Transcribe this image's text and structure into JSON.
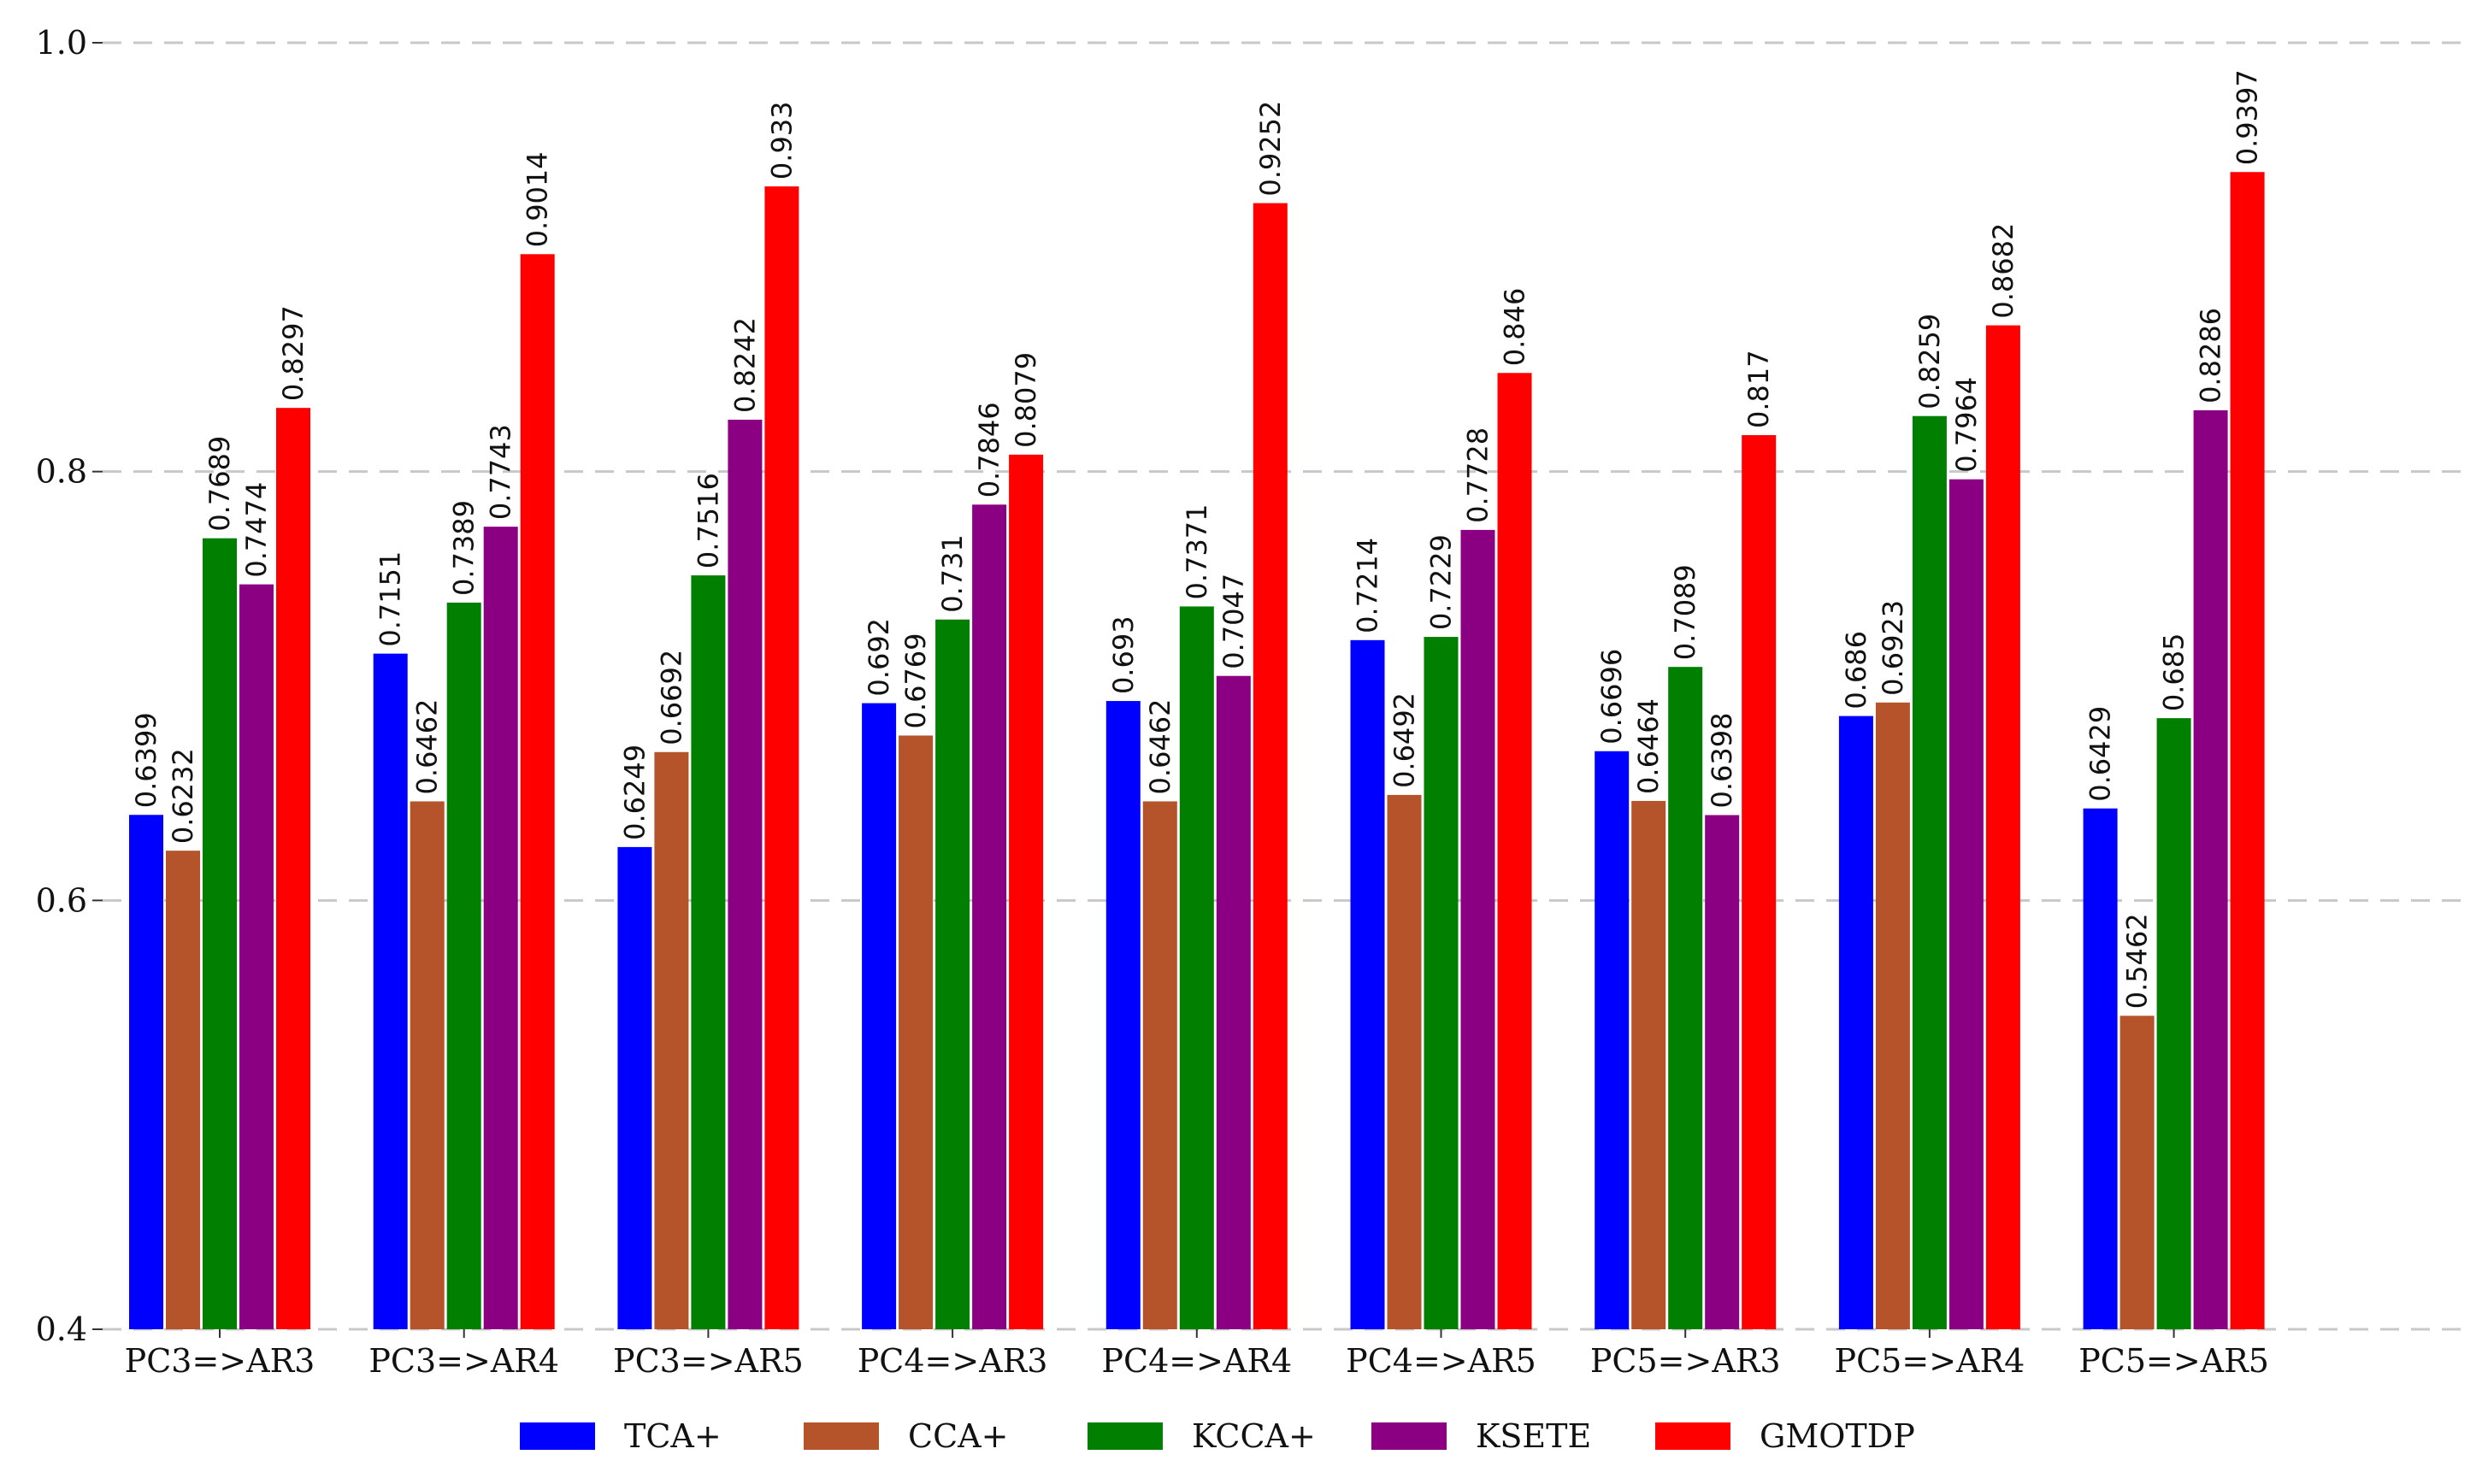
{
  "chart_data": {
    "type": "bar",
    "title": "",
    "xlabel": "",
    "ylabel": "",
    "ylim": [
      0.4,
      1.0
    ],
    "yticks": [
      0.4,
      0.6,
      0.8,
      1.0
    ],
    "ytick_labels": [
      "0.4",
      "0.6",
      "0.8",
      "1.0"
    ],
    "grid": true,
    "legend_position": "bottom",
    "categories": [
      "PC3=>AR3",
      "PC3=>AR4",
      "PC3=>AR5",
      "PC4=>AR3",
      "PC4=>AR4",
      "PC4=>AR5",
      "PC5=>AR3",
      "PC5=>AR4",
      "PC5=>AR5"
    ],
    "series": [
      {
        "name": "TCA+",
        "color": "#0000ff",
        "values": [
          0.6399,
          0.7151,
          0.6249,
          0.692,
          0.693,
          0.7214,
          0.6696,
          0.686,
          0.6429
        ],
        "labels": [
          "0.6399",
          "0.7151",
          "0.6249",
          "0.692",
          "0.693",
          "0.7214",
          "0.6696",
          "0.686",
          "0.6429"
        ]
      },
      {
        "name": "CCA+",
        "color": "#b5542a",
        "values": [
          0.6232,
          0.6462,
          0.6692,
          0.6769,
          0.6462,
          0.6492,
          0.6464,
          0.6923,
          0.5462
        ],
        "labels": [
          "0.6232",
          "0.6462",
          "0.6692",
          "0.6769",
          "0.6462",
          "0.6492",
          "0.6464",
          "0.6923",
          "0.5462"
        ]
      },
      {
        "name": "KCCA+",
        "color": "#007f00",
        "values": [
          0.7689,
          0.7389,
          0.7516,
          0.731,
          0.7371,
          0.7229,
          0.7089,
          0.8259,
          0.685
        ],
        "labels": [
          "0.7689",
          "0.7389",
          "0.7516",
          "0.731",
          "0.7371",
          "0.7229",
          "0.7089",
          "0.8259",
          "0.685"
        ]
      },
      {
        "name": "KSETE",
        "color": "#8b0083",
        "values": [
          0.7474,
          0.7743,
          0.8242,
          0.7846,
          0.7047,
          0.7728,
          0.6398,
          0.7964,
          0.8286
        ],
        "labels": [
          "0.7474",
          "0.7743",
          "0.8242",
          "0.7846",
          "0.7047",
          "0.7728",
          "0.6398",
          "0.7964",
          "0.8286"
        ]
      },
      {
        "name": "GMOTDP",
        "color": "#ff0000",
        "values": [
          0.8297,
          0.9014,
          0.933,
          0.8079,
          0.9252,
          0.846,
          0.817,
          0.8682,
          0.9397
        ],
        "labels": [
          "0.8297",
          "0.9014",
          "0.933",
          "0.8079",
          "0.9252",
          "0.846",
          "0.817",
          "0.8682",
          "0.9397"
        ]
      }
    ]
  }
}
